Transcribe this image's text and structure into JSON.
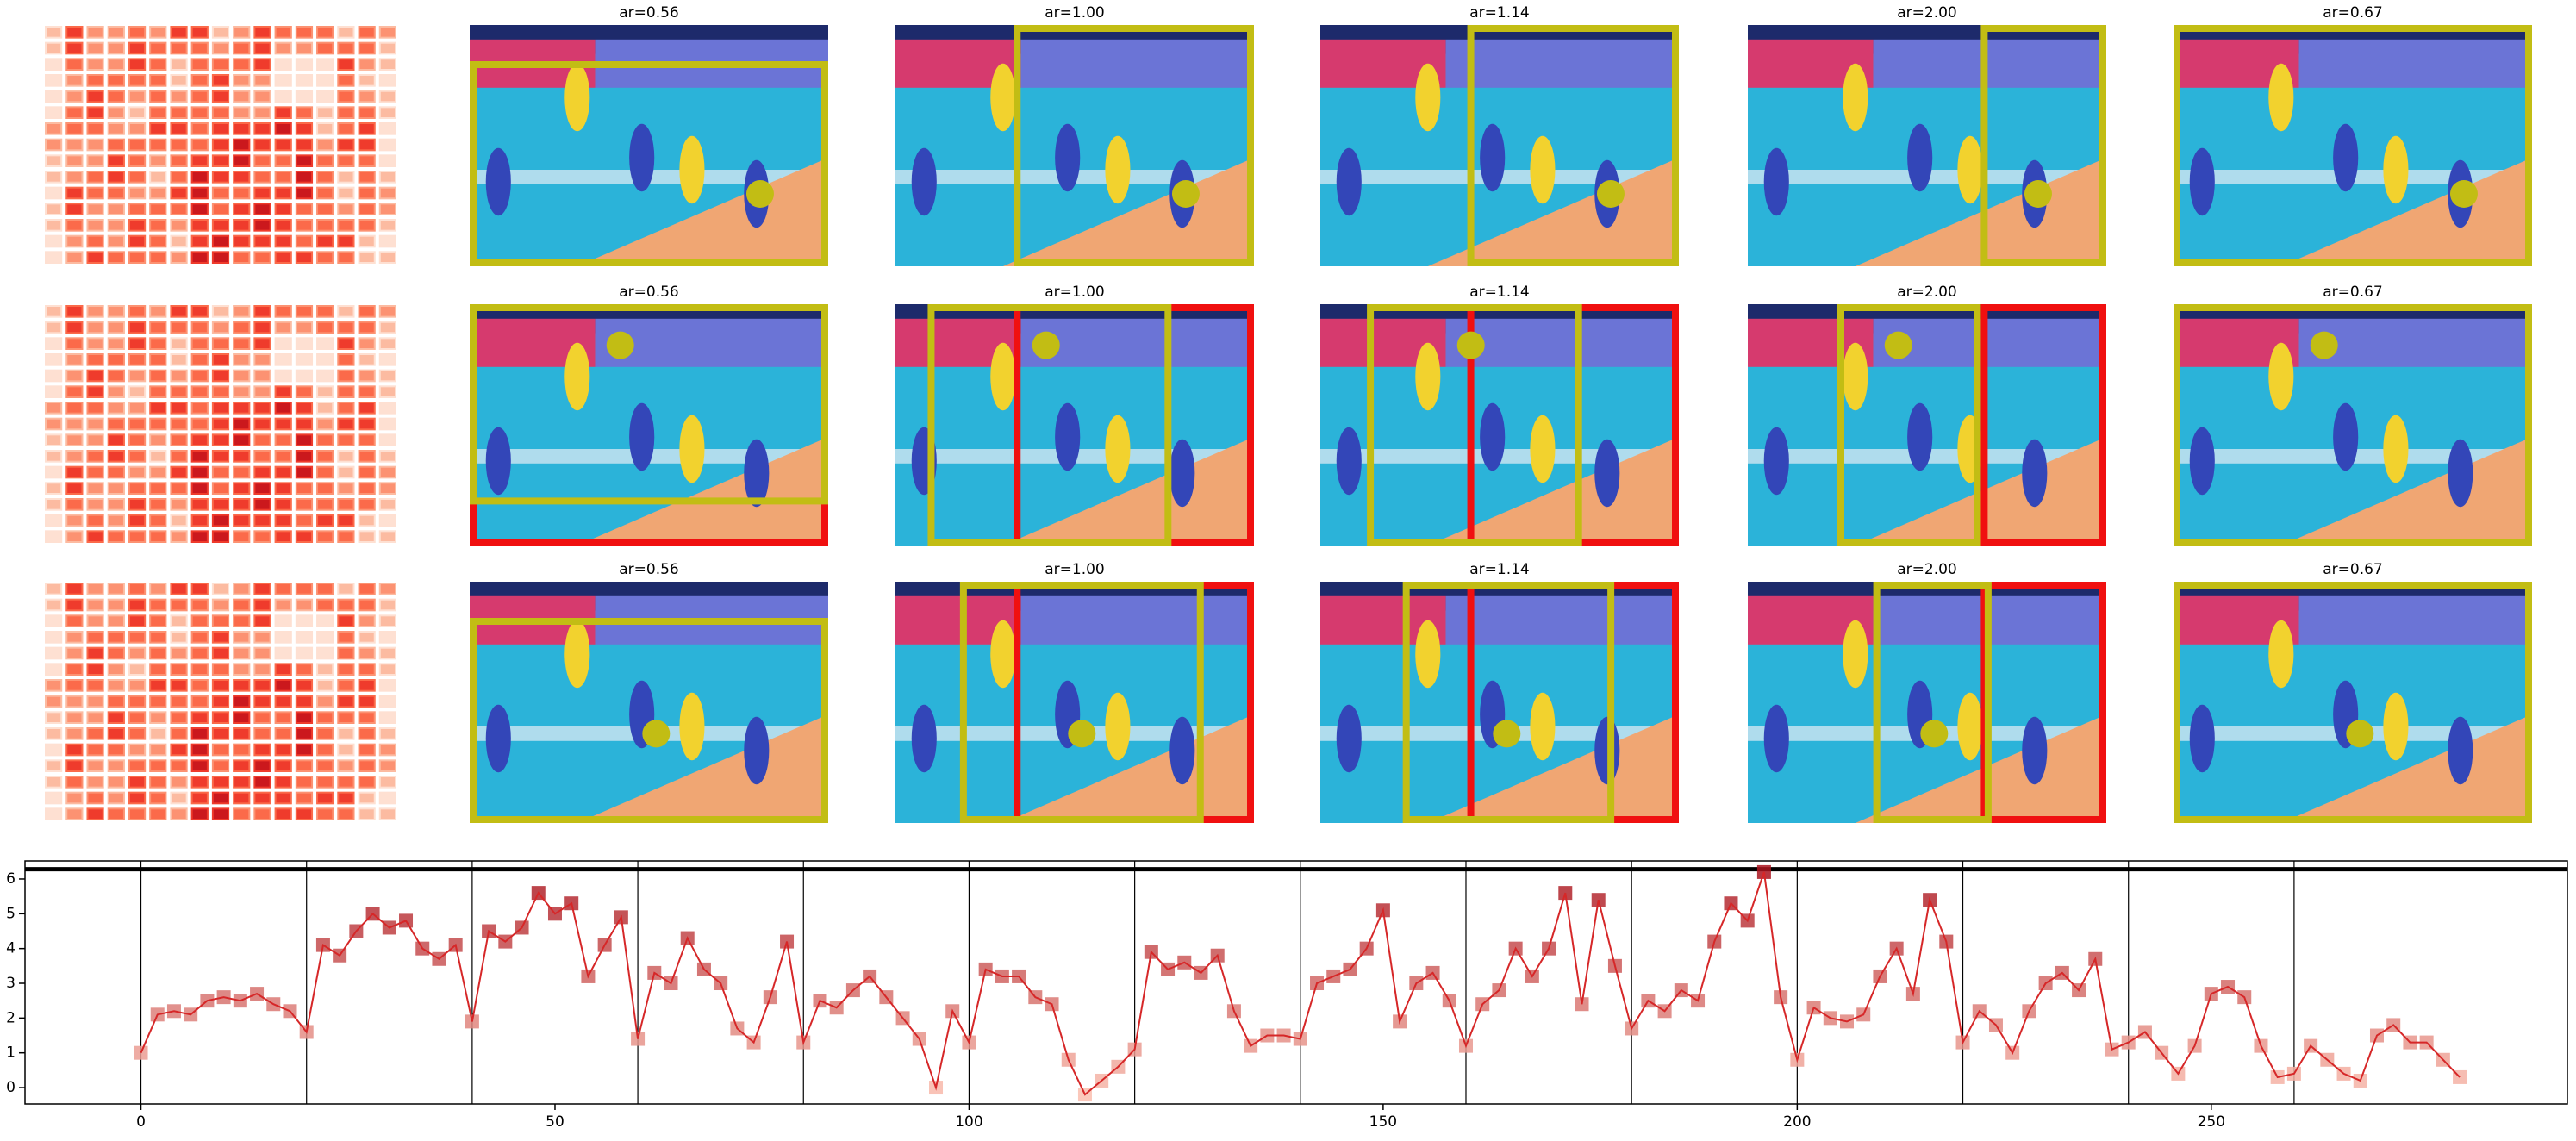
{
  "image_grid": {
    "rows": [
      {
        "titles": [
          "ar=0.56",
          "ar=1.00",
          "ar=1.14",
          "ar=2.00",
          "ar=0.67"
        ]
      },
      {
        "titles": [
          "ar=0.56",
          "ar=1.00",
          "ar=1.14",
          "ar=2.00",
          "ar=0.67"
        ]
      },
      {
        "titles": [
          "ar=0.56",
          "ar=1.00",
          "ar=1.14",
          "ar=2.00",
          "ar=0.67"
        ]
      }
    ]
  },
  "chart_data": {
    "type": "line",
    "color": "#d62728",
    "x": [
      0,
      2,
      4,
      6,
      8,
      10,
      12,
      14,
      16,
      18,
      20,
      22,
      24,
      26,
      28,
      30,
      32,
      34,
      36,
      38,
      40,
      42,
      44,
      46,
      48,
      50,
      52,
      54,
      56,
      58,
      60,
      62,
      64,
      66,
      68,
      70,
      72,
      74,
      76,
      78,
      80,
      82,
      84,
      86,
      88,
      90,
      92,
      94,
      96,
      98,
      100,
      102,
      104,
      106,
      108,
      110,
      112,
      114,
      116,
      118,
      120,
      122,
      124,
      126,
      128,
      130,
      132,
      134,
      136,
      138,
      140,
      142,
      144,
      146,
      148,
      150,
      152,
      154,
      156,
      158,
      160,
      162,
      164,
      166,
      168,
      170,
      172,
      174,
      176,
      178,
      180,
      182,
      184,
      186,
      188,
      190,
      192,
      194,
      196,
      198,
      200,
      202,
      204,
      206,
      208,
      210,
      212,
      214,
      216,
      218,
      220,
      222,
      224,
      226,
      228,
      230,
      232,
      234,
      236,
      238,
      240,
      242,
      244,
      246,
      248,
      250,
      252,
      254,
      256,
      258,
      260,
      262,
      264,
      266,
      268,
      270,
      272,
      274,
      276,
      278,
      280
    ],
    "values": [
      1.0,
      2.1,
      2.2,
      2.1,
      2.5,
      2.6,
      2.5,
      2.7,
      2.4,
      2.2,
      1.6,
      4.1,
      3.8,
      4.5,
      5.0,
      4.6,
      4.8,
      4.0,
      3.7,
      4.1,
      1.9,
      4.5,
      4.2,
      4.6,
      5.6,
      5.0,
      5.3,
      3.2,
      4.1,
      4.9,
      1.4,
      3.3,
      3.0,
      4.3,
      3.4,
      3.0,
      1.7,
      1.3,
      2.6,
      4.2,
      1.3,
      2.5,
      2.3,
      2.8,
      3.2,
      2.6,
      2.0,
      1.4,
      0.0,
      2.2,
      1.3,
      3.4,
      3.2,
      3.2,
      2.6,
      2.4,
      0.8,
      -0.2,
      0.2,
      0.6,
      1.1,
      3.9,
      3.4,
      3.6,
      3.3,
      3.8,
      2.2,
      1.2,
      1.5,
      1.5,
      1.4,
      3.0,
      3.2,
      3.4,
      4.0,
      5.1,
      1.9,
      3.0,
      3.3,
      2.5,
      1.2,
      2.4,
      2.8,
      4.0,
      3.2,
      4.0,
      5.6,
      2.4,
      5.4,
      3.5,
      1.7,
      2.5,
      2.2,
      2.8,
      2.5,
      4.2,
      5.3,
      4.8,
      6.2,
      2.6,
      0.8,
      2.3,
      2.0,
      1.9,
      2.1,
      3.2,
      4.0,
      2.7,
      5.4,
      4.2,
      1.3,
      2.2,
      1.8,
      1.0,
      2.2,
      3.0,
      3.3,
      2.8,
      3.7,
      1.1,
      1.3,
      1.6,
      1.0,
      0.4,
      1.2,
      2.7,
      2.9,
      2.6,
      1.2,
      0.3,
      0.4,
      1.2,
      0.8,
      0.4,
      0.2,
      1.5,
      1.8,
      1.3,
      1.3,
      0.8,
      0.3
    ],
    "xlim": [
      -14,
      293
    ],
    "ylim": [
      -0.47,
      6.52
    ],
    "xticks": [
      0,
      50,
      100,
      150,
      200,
      250
    ],
    "yticks": [
      0,
      1,
      2,
      3,
      4,
      5,
      6
    ],
    "vlines": [
      0,
      20,
      40,
      60,
      80,
      100,
      120,
      140,
      160,
      180,
      200,
      220,
      240,
      260
    ],
    "hlines": [
      6.28
    ]
  }
}
